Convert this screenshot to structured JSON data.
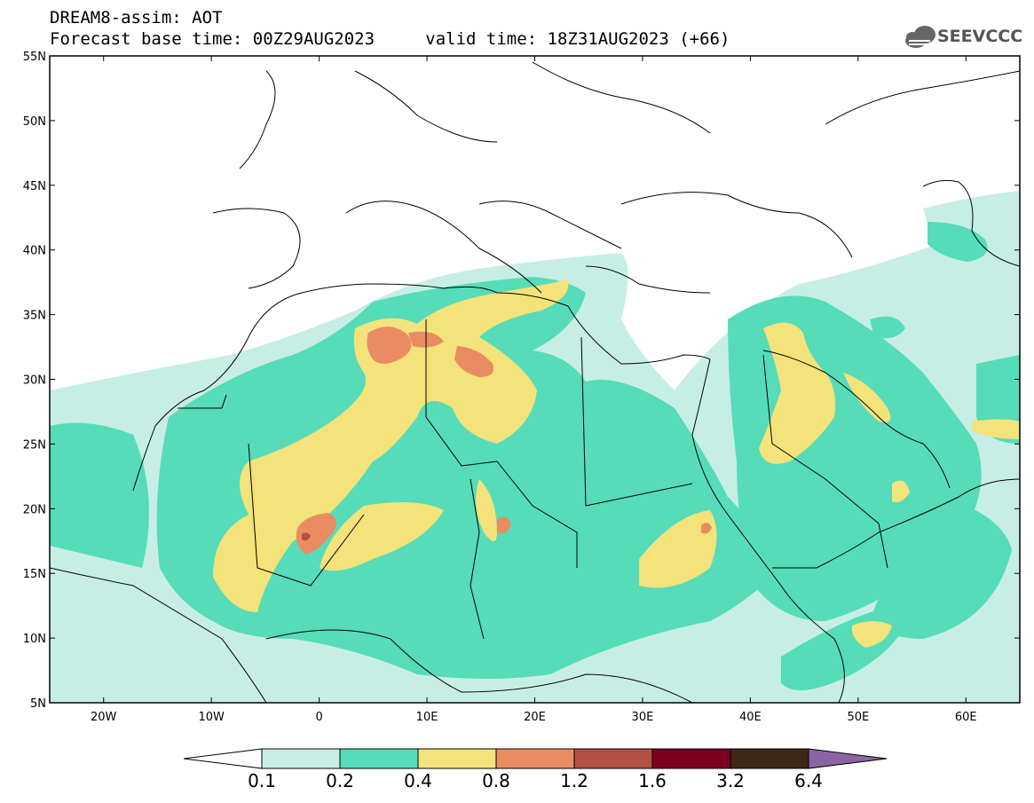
{
  "header": {
    "title": "DREAM8-assim: AOT",
    "base_time": "Forecast base time: 00Z29AUG2023",
    "valid_time": "valid time: 18Z31AUG2023 (+66)",
    "logo_text": "SEEVCCC"
  },
  "map": {
    "lon_range": [
      -25,
      65
    ],
    "lat_range": [
      5,
      55
    ],
    "lat_labels": [
      "55N",
      "50N",
      "45N",
      "40N",
      "35N",
      "30N",
      "25N",
      "20N",
      "15N",
      "10N",
      "5N"
    ],
    "lon_labels": [
      "20W",
      "10W",
      "0",
      "10E",
      "20E",
      "30E",
      "40E",
      "50E",
      "60E"
    ]
  },
  "legend": {
    "levels": [
      "0.1",
      "0.2",
      "0.4",
      "0.8",
      "1.2",
      "1.6",
      "3.2",
      "6.4"
    ],
    "colors": [
      "#ffffff",
      "#c7eee5",
      "#56dcb9",
      "#f4e27a",
      "#e98c62",
      "#b45140",
      "#7d0021",
      "#3f2615",
      "#8c64a6"
    ]
  }
}
